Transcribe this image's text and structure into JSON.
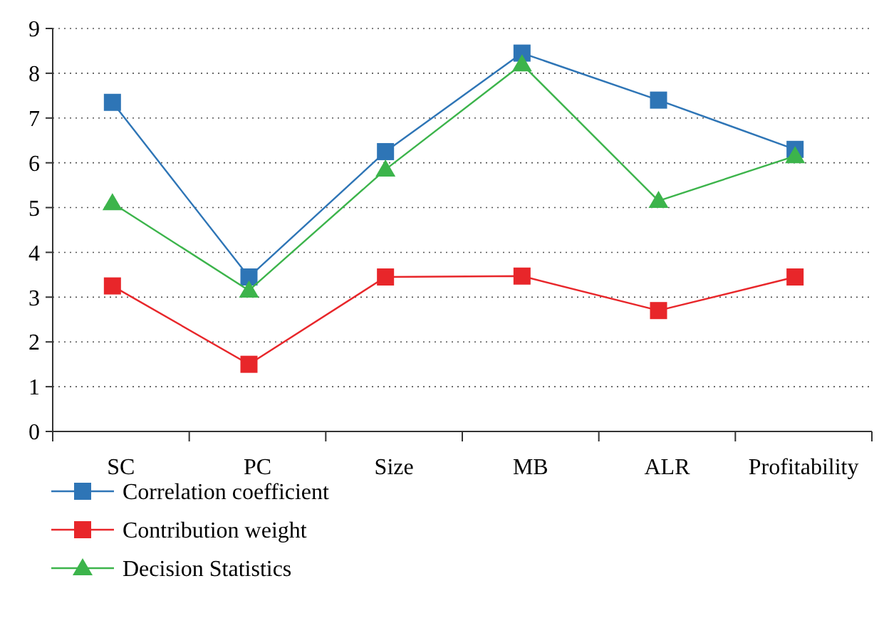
{
  "chart_data": {
    "type": "line",
    "categories": [
      "SC",
      "PC",
      "Size",
      "MB",
      "ALR",
      "Profitability"
    ],
    "series": [
      {
        "name": "Correlation coefficient",
        "color": "#2e75b6",
        "marker": "square",
        "values": [
          7.35,
          3.45,
          6.25,
          8.45,
          7.4,
          6.3
        ]
      },
      {
        "name": "Contribution weight",
        "color": "#e8262a",
        "marker": "square",
        "values": [
          3.25,
          1.5,
          3.45,
          3.47,
          2.7,
          3.45
        ]
      },
      {
        "name": "Decision Statistics",
        "color": "#3cb44b",
        "marker": "triangle",
        "values": [
          5.1,
          3.15,
          5.85,
          8.2,
          5.15,
          6.15
        ]
      }
    ],
    "ylim": [
      0,
      9
    ],
    "yticks": [
      0,
      1,
      2,
      3,
      4,
      5,
      6,
      7,
      8,
      9
    ],
    "grid": "y",
    "legend": "bottom left"
  }
}
